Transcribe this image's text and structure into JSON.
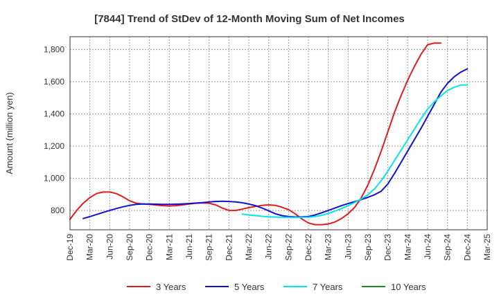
{
  "chart_data": {
    "type": "line",
    "title": "[7844]  Trend of StDev of 12-Month Moving Sum of Net Incomes",
    "ylabel": "Amount (million yen)",
    "xlabel": "",
    "ylim": [
      680,
      1880
    ],
    "yticks": [
      800,
      1000,
      1200,
      1400,
      1600,
      1800
    ],
    "ytick_labels": [
      "800",
      "1,000",
      "1,200",
      "1,400",
      "1,600",
      "1,800"
    ],
    "xticks": [
      "Dec-19",
      "Mar-20",
      "Jun-20",
      "Sep-20",
      "Dec-20",
      "Mar-21",
      "Jun-21",
      "Sep-21",
      "Dec-21",
      "Mar-22",
      "Jun-22",
      "Sep-22",
      "Dec-22",
      "Mar-23",
      "Jun-23",
      "Sep-23",
      "Dec-23",
      "Mar-24",
      "Jun-24",
      "Sep-24",
      "Dec-24",
      "Mar-25"
    ],
    "x_range_months": [
      0,
      63
    ],
    "grid": true,
    "legend_position": "bottom",
    "series": [
      {
        "name": "3 Years",
        "color": "#e31a1c",
        "x_months": [
          0,
          1,
          2,
          3,
          4,
          5,
          6,
          7,
          8,
          9,
          10,
          11,
          12,
          13,
          14,
          15,
          16,
          17,
          18,
          19,
          20,
          21,
          22,
          23,
          24,
          25,
          26,
          27,
          28,
          29,
          30,
          31,
          32,
          33,
          34,
          35,
          36,
          37,
          38,
          39,
          40,
          41,
          42,
          43,
          44,
          45,
          46,
          47,
          48,
          49,
          50,
          51,
          52,
          53,
          54,
          55,
          56,
          57,
          58,
          59,
          60
        ],
        "values": [
          745,
          800,
          845,
          880,
          905,
          915,
          915,
          905,
          885,
          860,
          845,
          840,
          838,
          834,
          830,
          828,
          830,
          835,
          840,
          845,
          847,
          845,
          835,
          815,
          800,
          800,
          808,
          818,
          825,
          832,
          835,
          832,
          820,
          805,
          780,
          748,
          722,
          712,
          712,
          716,
          728,
          750,
          780,
          820,
          880,
          960,
          1060,
          1170,
          1290,
          1410,
          1515,
          1610,
          1695,
          1770,
          1830,
          1840,
          1840,
          null,
          null,
          null,
          null
        ]
      },
      {
        "name": "5 Years",
        "color": "#1010d0",
        "x_months": [
          2,
          3,
          4,
          5,
          6,
          7,
          8,
          9,
          10,
          11,
          12,
          13,
          14,
          15,
          16,
          17,
          18,
          19,
          20,
          21,
          22,
          23,
          24,
          25,
          26,
          27,
          28,
          29,
          30,
          31,
          32,
          33,
          34,
          35,
          36,
          37,
          38,
          39,
          40,
          41,
          42,
          43,
          44,
          45,
          46,
          47,
          48,
          49,
          50,
          51,
          52,
          53,
          54,
          55,
          56,
          57,
          58,
          59,
          60
        ],
        "values": [
          750,
          762,
          775,
          788,
          800,
          812,
          823,
          832,
          838,
          840,
          840,
          839,
          838,
          838,
          839,
          841,
          843,
          846,
          849,
          853,
          856,
          857,
          856,
          853,
          848,
          840,
          830,
          815,
          798,
          780,
          768,
          762,
          760,
          760,
          762,
          772,
          786,
          800,
          815,
          830,
          843,
          855,
          868,
          882,
          898,
          920,
          965,
          1030,
          1100,
          1170,
          1240,
          1310,
          1385,
          1460,
          1535,
          1590,
          1630,
          1660,
          1680
        ]
      },
      {
        "name": "7 Years",
        "color": "#00e5ee",
        "x_months": [
          26,
          27,
          28,
          29,
          30,
          31,
          32,
          33,
          34,
          35,
          36,
          37,
          38,
          39,
          40,
          41,
          42,
          43,
          44,
          45,
          46,
          47,
          48,
          49,
          50,
          51,
          52,
          53,
          54,
          55,
          56,
          57,
          58,
          59,
          60
        ],
        "values": [
          778,
          772,
          768,
          764,
          761,
          759,
          758,
          757,
          757,
          757,
          758,
          762,
          770,
          782,
          796,
          812,
          830,
          850,
          872,
          898,
          935,
          985,
          1045,
          1110,
          1175,
          1240,
          1305,
          1370,
          1430,
          1475,
          1512,
          1545,
          1565,
          1580,
          1580
        ]
      },
      {
        "name": "10 Years",
        "color": "#1a8f1a",
        "x_months": [],
        "values": []
      }
    ]
  }
}
